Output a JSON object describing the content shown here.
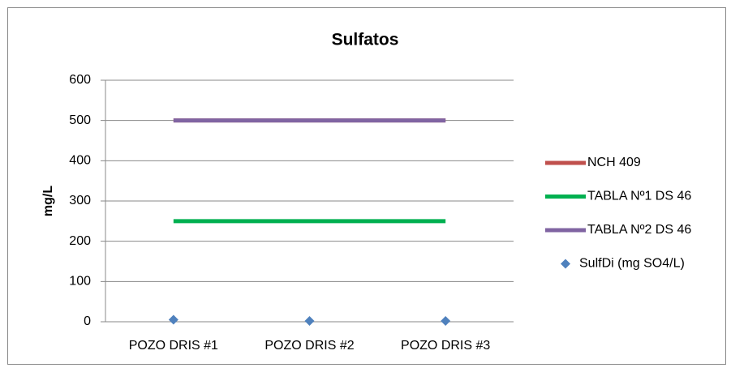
{
  "chart_data": {
    "type": "line",
    "title": "Sulfatos",
    "y_label": "mg/L",
    "categories": [
      "POZO DRIS #1",
      "POZO DRIS #2",
      "POZO DRIS #3"
    ],
    "series": [
      {
        "name": "NCH 409",
        "color": "#c0504d",
        "mode": "lines",
        "values": [
          500,
          500,
          500
        ]
      },
      {
        "name": "TABLA Nº1 DS 46",
        "color": "#00b050",
        "mode": "lines",
        "values": [
          250,
          250,
          250
        ]
      },
      {
        "name": "TABLA Nº2 DS 46",
        "color": "#8064a2",
        "mode": "lines",
        "values": [
          500,
          500,
          500
        ]
      },
      {
        "name": "SulfDi (mg SO4/L)",
        "color": "#4f81bd",
        "mode": "markers",
        "values": [
          5,
          2,
          2
        ]
      }
    ],
    "ylim": [
      0,
      600
    ],
    "yticks": [
      0,
      100,
      200,
      300,
      400,
      500,
      600
    ],
    "grid": true,
    "legend": "right"
  }
}
